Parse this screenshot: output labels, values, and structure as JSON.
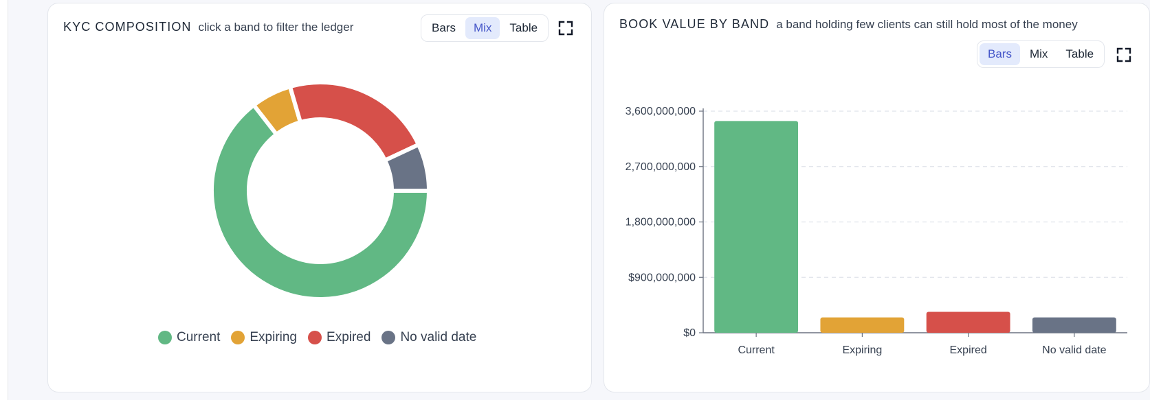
{
  "panels": {
    "kyc": {
      "title": "KYC COMPOSITION",
      "subtitle": "click a band to filter the ledger",
      "toggle": [
        "Bars",
        "Mix",
        "Table"
      ],
      "active": "Mix",
      "fullscreen_icon": "expand-icon"
    },
    "book": {
      "title": "BOOK VALUE BY BAND",
      "subtitle": "a band holding few clients can still hold most of the money",
      "toggle": [
        "Bars",
        "Mix",
        "Table"
      ],
      "active": "Bars",
      "fullscreen_icon": "expand-icon"
    }
  },
  "legend": [
    {
      "label": "Current",
      "color": "#61b884"
    },
    {
      "label": "Expiring",
      "color": "#e2a336"
    },
    {
      "label": "Expired",
      "color": "#d6504a"
    },
    {
      "label": "No valid date",
      "color": "#697386"
    }
  ],
  "chart_data": [
    {
      "type": "pie",
      "categories": [
        "Current",
        "Expiring",
        "Expired",
        "No valid date"
      ],
      "values": [
        64.5,
        6,
        22.5,
        7
      ],
      "colors": [
        "#61b884",
        "#e2a336",
        "#d6504a",
        "#697386"
      ],
      "legend_position": "bottom"
    },
    {
      "type": "bar",
      "categories": [
        "Current",
        "Expiring",
        "Expired",
        "No valid date"
      ],
      "values": [
        3440000000,
        250000000,
        340000000,
        250000000
      ],
      "colors": [
        "#61b884",
        "#e2a336",
        "#d6504a",
        "#697386"
      ],
      "ylim": [
        0,
        3600000000
      ],
      "yticks": [
        0,
        900000000,
        1800000000,
        2700000000,
        3600000000
      ],
      "ytick_labels": [
        "$0",
        "$900,000,000",
        "1,800,000,000",
        "2,700,000,000",
        "3,600,000,000"
      ],
      "grid": true
    }
  ]
}
